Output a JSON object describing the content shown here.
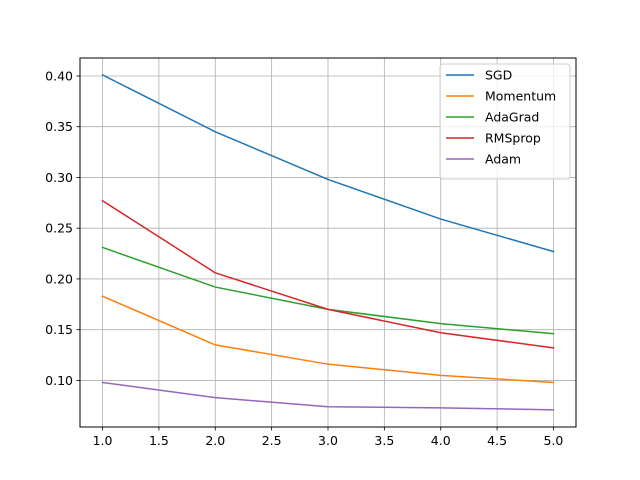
{
  "chart_data": {
    "type": "line",
    "title": "",
    "xlabel": "",
    "ylabel": "",
    "x": [
      1.0,
      2.0,
      3.0,
      4.0,
      5.0
    ],
    "xlim": [
      0.8,
      5.2
    ],
    "ylim": [
      0.0541,
      0.4177
    ],
    "grid": true,
    "legend_position": "upper right",
    "x_ticks": [
      1.0,
      1.5,
      2.0,
      2.5,
      3.0,
      3.5,
      4.0,
      4.5,
      5.0
    ],
    "x_tick_labels": [
      "1.0",
      "1.5",
      "2.0",
      "2.5",
      "3.0",
      "3.5",
      "4.0",
      "4.5",
      "5.0"
    ],
    "y_ticks": [
      0.1,
      0.15,
      0.2,
      0.25,
      0.3,
      0.35,
      0.4
    ],
    "y_tick_labels": [
      "0.10",
      "0.15",
      "0.20",
      "0.25",
      "0.30",
      "0.35",
      "0.40"
    ],
    "series": [
      {
        "name": "SGD",
        "color": "#1f77b4",
        "values": [
          0.401,
          0.345,
          0.298,
          0.259,
          0.227
        ]
      },
      {
        "name": "Momentum",
        "color": "#ff7f0e",
        "values": [
          0.183,
          0.135,
          0.116,
          0.105,
          0.098
        ]
      },
      {
        "name": "AdaGrad",
        "color": "#2ca02c",
        "values": [
          0.231,
          0.192,
          0.17,
          0.156,
          0.146
        ]
      },
      {
        "name": "RMSprop",
        "color": "#d62728",
        "values": [
          0.277,
          0.206,
          0.17,
          0.147,
          0.132
        ]
      },
      {
        "name": "Adam",
        "color": "#9467bd",
        "values": [
          0.098,
          0.083,
          0.074,
          0.073,
          0.071
        ]
      }
    ]
  }
}
